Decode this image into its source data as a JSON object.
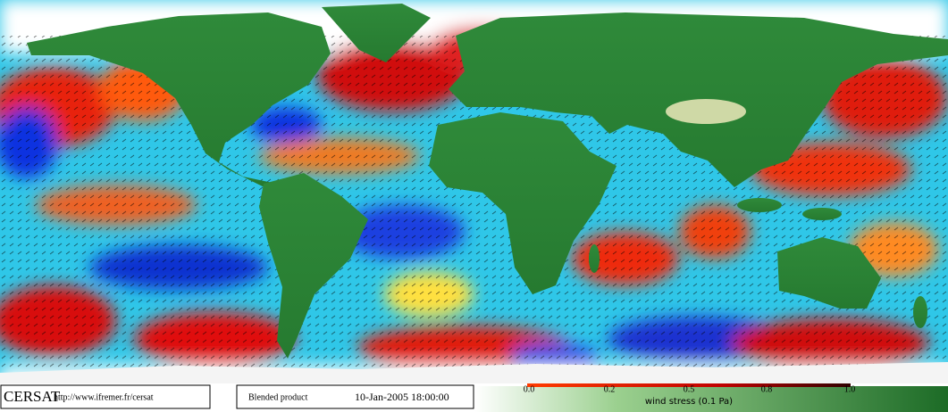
{
  "footer": {
    "brand": "CERSAT",
    "url": "http://www.ifremer.fr/cersat",
    "product": "Blended product",
    "timestamp": "10-Jan-2005 18:00:00"
  },
  "colorbar": {
    "ticks": [
      "0.0",
      "0.2",
      "0.5",
      "0.8",
      "1.0"
    ],
    "label": "wind stress (0.1 Pa)"
  }
}
